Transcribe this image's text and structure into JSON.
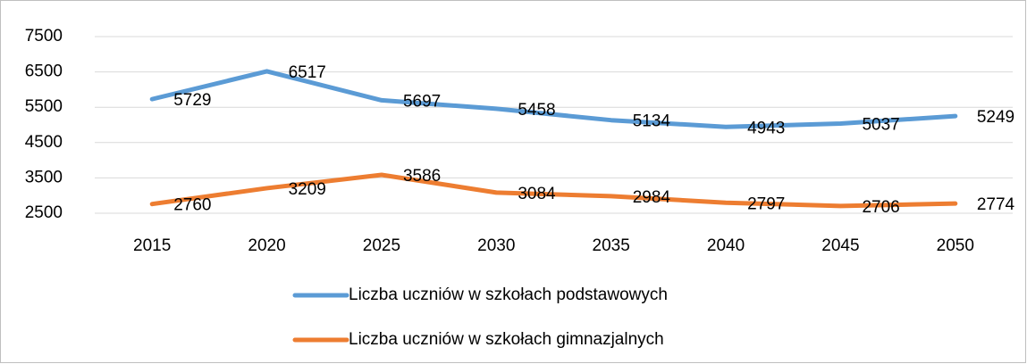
{
  "chart_data": {
    "type": "line",
    "categories": [
      "2015",
      "2020",
      "2025",
      "2030",
      "2035",
      "2040",
      "2045",
      "2050"
    ],
    "series": [
      {
        "name": "Liczba uczniów w szkołach podstawowych",
        "color": "#5b9bd5",
        "values": [
          5729,
          6517,
          5697,
          5458,
          5134,
          4943,
          5037,
          5249
        ]
      },
      {
        "name": "Liczba uczniów w szkołach gimnazjalnych",
        "color": "#ed7d31",
        "values": [
          2760,
          3209,
          3586,
          3084,
          2984,
          2797,
          2706,
          2774
        ]
      }
    ],
    "ylim": [
      2500,
      7500
    ],
    "yticks": [
      2500,
      3500,
      4500,
      5500,
      6500,
      7500
    ],
    "grid": true,
    "legend": "bottom"
  }
}
